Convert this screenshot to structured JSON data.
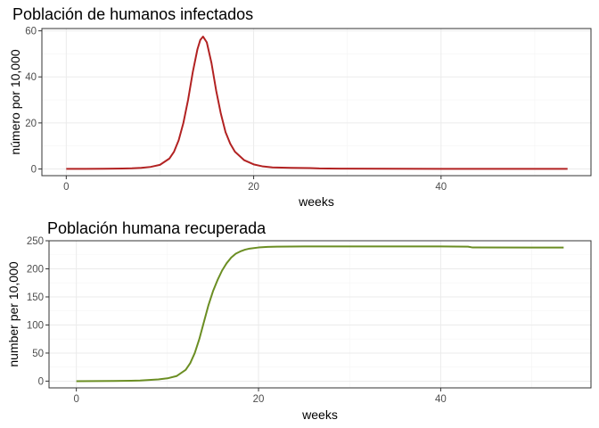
{
  "chart_data": [
    {
      "type": "line",
      "title": "Población de humanos infectados",
      "xlabel": "weeks",
      "ylabel": "número por 10,000",
      "xlim": [
        -2.6,
        56
      ],
      "ylim": [
        -2.9,
        61
      ],
      "xticks": [
        0,
        20,
        40
      ],
      "yticks": [
        0,
        20,
        40,
        60
      ],
      "xminor": [
        10,
        30,
        50
      ],
      "yminor": [
        10,
        30,
        50
      ],
      "grid": true,
      "legend": "none",
      "color": "#b22222",
      "series": [
        {
          "x": [
            0,
            2,
            4,
            6,
            7,
            8,
            9,
            10,
            11,
            11.5,
            12,
            12.5,
            13,
            13.5,
            14,
            14.3,
            14.6,
            15,
            15.5,
            16,
            16.5,
            17,
            17.5,
            18,
            19,
            20,
            21,
            22,
            24,
            26,
            27,
            28,
            30,
            35,
            40,
            45,
            50,
            53.5
          ],
          "y": [
            0.05,
            0.05,
            0.1,
            0.2,
            0.3,
            0.5,
            0.9,
            1.8,
            4.5,
            7.5,
            12.5,
            20,
            30,
            42,
            52,
            56,
            57.5,
            55,
            46,
            34,
            24,
            16,
            11,
            7.5,
            3.8,
            2,
            1.1,
            0.7,
            0.5,
            0.4,
            0.25,
            0.2,
            0.15,
            0.1,
            0.05,
            0.05,
            0.05,
            0.05
          ]
        }
      ]
    },
    {
      "type": "line",
      "title": "Población humana recuperada",
      "xlabel": "weeks",
      "ylabel": "number per 10,000",
      "xlim": [
        -3,
        56.5
      ],
      "ylim": [
        -12,
        250
      ],
      "xticks": [
        0,
        20,
        40
      ],
      "yticks": [
        0,
        50,
        100,
        150,
        200,
        250
      ],
      "xminor": [
        10,
        30,
        50
      ],
      "yminor": [
        25,
        75,
        125,
        175,
        225
      ],
      "grid": true,
      "legend": "none",
      "color": "#6b8e23",
      "series": [
        {
          "x": [
            0,
            2,
            4,
            6,
            7,
            8,
            9,
            10,
            11,
            12,
            12.5,
            13,
            13.5,
            14,
            14.5,
            15,
            15.5,
            16,
            16.5,
            17,
            17.5,
            18,
            18.5,
            19,
            20,
            21,
            22,
            25,
            30,
            35,
            40,
            43,
            43.5,
            50,
            53.5
          ],
          "y": [
            0,
            0.1,
            0.3,
            0.8,
            1.2,
            2,
            3,
            5,
            9,
            20,
            32,
            50,
            75,
            105,
            135,
            160,
            180,
            197,
            210,
            220,
            227,
            231,
            234,
            236,
            238,
            239,
            239.5,
            239.8,
            239.8,
            239.8,
            239.8,
            239.5,
            238,
            237.8,
            237.8
          ]
        }
      ]
    }
  ]
}
